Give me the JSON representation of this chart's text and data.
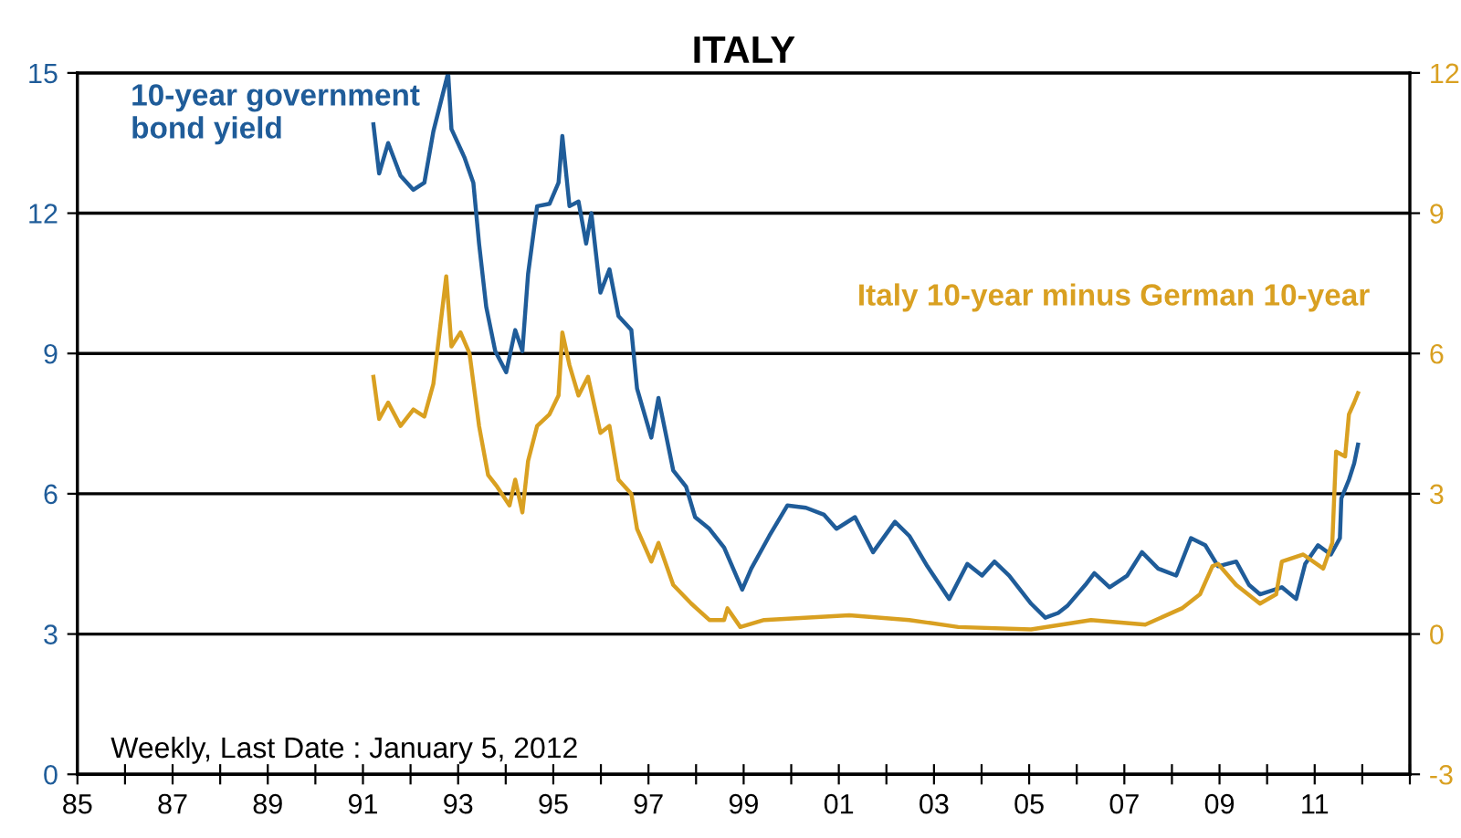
{
  "chart_data": {
    "type": "line",
    "title": "ITALY",
    "annotations": [
      "Weekly, Last Date : January 5, 2012"
    ],
    "xlim": [
      1985,
      2013
    ],
    "xticks": [
      {
        "value": 1985,
        "label": "85"
      },
      {
        "value": 1986,
        "label": null
      },
      {
        "value": 1987,
        "label": "87"
      },
      {
        "value": 1988,
        "label": null
      },
      {
        "value": 1989,
        "label": "89"
      },
      {
        "value": 1990,
        "label": null
      },
      {
        "value": 1991,
        "label": "91"
      },
      {
        "value": 1992,
        "label": null
      },
      {
        "value": 1993,
        "label": "93"
      },
      {
        "value": 1994,
        "label": null
      },
      {
        "value": 1995,
        "label": "95"
      },
      {
        "value": 1996,
        "label": null
      },
      {
        "value": 1997,
        "label": "97"
      },
      {
        "value": 1998,
        "label": null
      },
      {
        "value": 1999,
        "label": "99"
      },
      {
        "value": 2000,
        "label": null
      },
      {
        "value": 2001,
        "label": "01"
      },
      {
        "value": 2002,
        "label": null
      },
      {
        "value": 2003,
        "label": "03"
      },
      {
        "value": 2004,
        "label": null
      },
      {
        "value": 2005,
        "label": "05"
      },
      {
        "value": 2006,
        "label": null
      },
      {
        "value": 2007,
        "label": "07"
      },
      {
        "value": 2008,
        "label": null
      },
      {
        "value": 2009,
        "label": "09"
      },
      {
        "value": 2010,
        "label": null
      },
      {
        "value": 2011,
        "label": "11"
      },
      {
        "value": 2012,
        "label": null
      },
      {
        "value": 2013,
        "label": null
      }
    ],
    "ylim": [
      0,
      15
    ],
    "yticks": [
      0,
      3,
      6,
      9,
      12,
      15
    ],
    "y2lim": [
      -3,
      12
    ],
    "y2ticks": [
      -3,
      0,
      3,
      6,
      9,
      12
    ],
    "grid": "y",
    "legend": false,
    "series": [
      {
        "name": "10-year government bond yield",
        "color": "#1f5c99",
        "x": [
          1991.22,
          1991.34,
          1991.53,
          1991.79,
          1992.06,
          1992.29,
          1992.48,
          1992.79,
          1992.86,
          1993.13,
          1993.32,
          1993.44,
          1993.59,
          1993.78,
          1994.01,
          1994.2,
          1994.35,
          1994.47,
          1994.66,
          1994.92,
          1995.11,
          1995.19,
          1995.34,
          1995.53,
          1995.69,
          1995.8,
          1995.99,
          1996.18,
          1996.37,
          1996.64,
          1996.76,
          1997.06,
          1997.21,
          1997.52,
          1997.79,
          1997.98,
          1998.28,
          1998.59,
          1998.97,
          1999.16,
          1999.54,
          1999.92,
          2000.31,
          2000.69,
          2000.95,
          2001.34,
          2001.72,
          2002.18,
          2002.48,
          2002.86,
          2003.32,
          2003.7,
          2004.01,
          2004.27,
          2004.58,
          2005.04,
          2005.34,
          2005.61,
          2005.8,
          2006.18,
          2006.37,
          2006.69,
          2007.06,
          2007.37,
          2007.71,
          2008.09,
          2008.4,
          2008.7,
          2008.97,
          2009.35,
          2009.62,
          2009.85,
          2010.31,
          2010.61,
          2010.8,
          2011.07,
          2011.34,
          2011.53,
          2011.56,
          2011.72,
          2011.83,
          2011.91
        ],
        "values": [
          13.9,
          12.85,
          13.5,
          12.8,
          12.5,
          12.65,
          13.75,
          15.0,
          13.8,
          13.2,
          12.65,
          11.35,
          10.0,
          9.05,
          8.6,
          9.5,
          9.05,
          10.7,
          12.15,
          12.2,
          12.65,
          13.65,
          12.15,
          12.25,
          11.35,
          12.0,
          10.3,
          10.8,
          9.8,
          9.5,
          8.25,
          7.2,
          8.05,
          6.5,
          6.15,
          5.5,
          5.25,
          4.85,
          3.95,
          4.4,
          5.1,
          5.75,
          5.7,
          5.55,
          5.25,
          5.5,
          4.75,
          5.4,
          5.1,
          4.45,
          3.75,
          4.5,
          4.25,
          4.55,
          4.25,
          3.65,
          3.35,
          3.45,
          3.6,
          4.05,
          4.3,
          4.0,
          4.25,
          4.75,
          4.4,
          4.25,
          5.05,
          4.9,
          4.45,
          4.55,
          4.05,
          3.85,
          4.0,
          3.75,
          4.5,
          4.9,
          4.7,
          5.05,
          5.9,
          6.3,
          6.65,
          7.05
        ]
      },
      {
        "name": "Italy 10-year minus German 10-year",
        "color": "#d9a021",
        "axis": "y2",
        "x": [
          1991.22,
          1991.34,
          1991.53,
          1991.79,
          1992.06,
          1992.29,
          1992.48,
          1992.75,
          1992.86,
          1993.05,
          1993.24,
          1993.44,
          1993.63,
          1993.82,
          1994.08,
          1994.2,
          1994.35,
          1994.47,
          1994.66,
          1994.92,
          1995.11,
          1995.19,
          1995.34,
          1995.53,
          1995.73,
          1995.99,
          1996.18,
          1996.37,
          1996.64,
          1996.76,
          1997.06,
          1997.21,
          1997.52,
          1997.9,
          1998.28,
          1998.59,
          1998.66,
          1998.93,
          1999.43,
          2001.22,
          2002.48,
          2003.51,
          2005.04,
          2006.3,
          2007.44,
          2008.21,
          2008.59,
          2008.85,
          2008.97,
          2009.35,
          2009.85,
          2010.19,
          2010.31,
          2010.76,
          2011.18,
          2011.37,
          2011.45,
          2011.64,
          2011.72,
          2011.83,
          2011.91
        ],
        "values": [
          5.5,
          4.6,
          4.95,
          4.45,
          4.8,
          4.65,
          5.35,
          7.65,
          6.15,
          6.45,
          6.0,
          4.45,
          3.4,
          3.15,
          2.75,
          3.3,
          2.6,
          3.7,
          4.45,
          4.7,
          5.1,
          6.45,
          5.75,
          5.1,
          5.5,
          4.3,
          4.45,
          3.3,
          3.0,
          2.25,
          1.55,
          1.95,
          1.05,
          0.65,
          0.3,
          0.3,
          0.55,
          0.15,
          0.3,
          0.4,
          0.3,
          0.15,
          0.1,
          0.3,
          0.2,
          0.55,
          0.85,
          1.45,
          1.5,
          1.05,
          0.65,
          0.85,
          1.55,
          1.7,
          1.4,
          1.95,
          3.9,
          3.8,
          4.7,
          4.95,
          5.15
        ]
      }
    ]
  }
}
